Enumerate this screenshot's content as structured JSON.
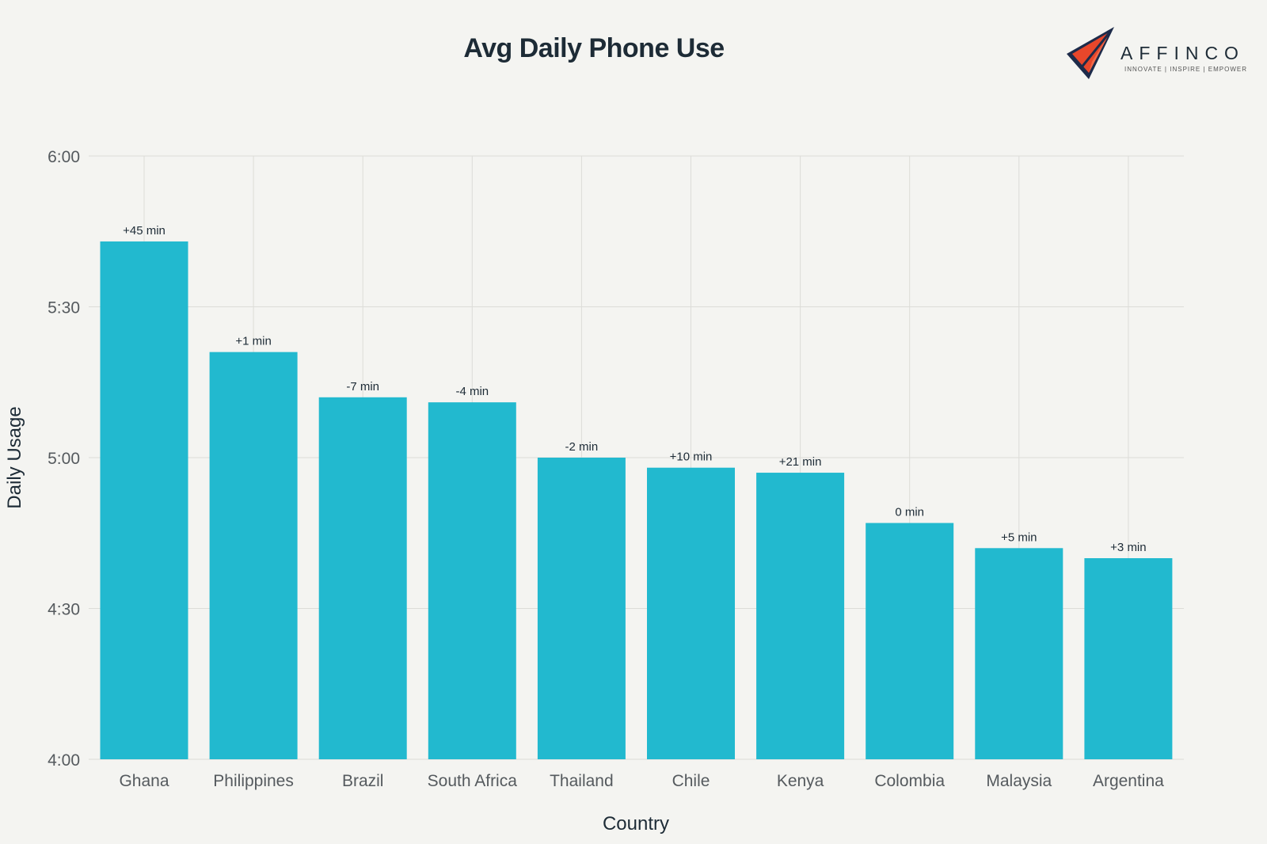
{
  "chart_data": {
    "type": "bar",
    "title": "Avg Daily Phone Use",
    "xlabel": "Country",
    "ylabel": "Daily Usage",
    "y_unit": "minutes",
    "ylim": [
      240,
      360
    ],
    "yticks": [
      {
        "value": 240,
        "label": "4:00"
      },
      {
        "value": 270,
        "label": "4:30"
      },
      {
        "value": 300,
        "label": "5:00"
      },
      {
        "value": 330,
        "label": "5:30"
      },
      {
        "value": 360,
        "label": "6:00"
      }
    ],
    "grid": true,
    "categories": [
      "Ghana",
      "Philippines",
      "Brazil",
      "South Africa",
      "Thailand",
      "Chile",
      "Kenya",
      "Colombia",
      "Malaysia",
      "Argentina"
    ],
    "values": [
      343,
      321,
      312,
      311,
      300,
      298,
      297,
      287,
      282,
      280
    ],
    "data_labels": [
      "+45 min",
      "+1 min",
      "-7 min",
      "-4 min",
      "-2 min",
      "+10 min",
      "+21 min",
      "0 min",
      "+5 min",
      "+3 min"
    ],
    "bar_color": "#22b9cf"
  },
  "branding": {
    "logo_text": "AFFINCO",
    "tagline": "INNOVATE | INSPIRE | EMPOWER",
    "colors": {
      "red": "#e8472b",
      "navy": "#1d2b4a"
    }
  }
}
